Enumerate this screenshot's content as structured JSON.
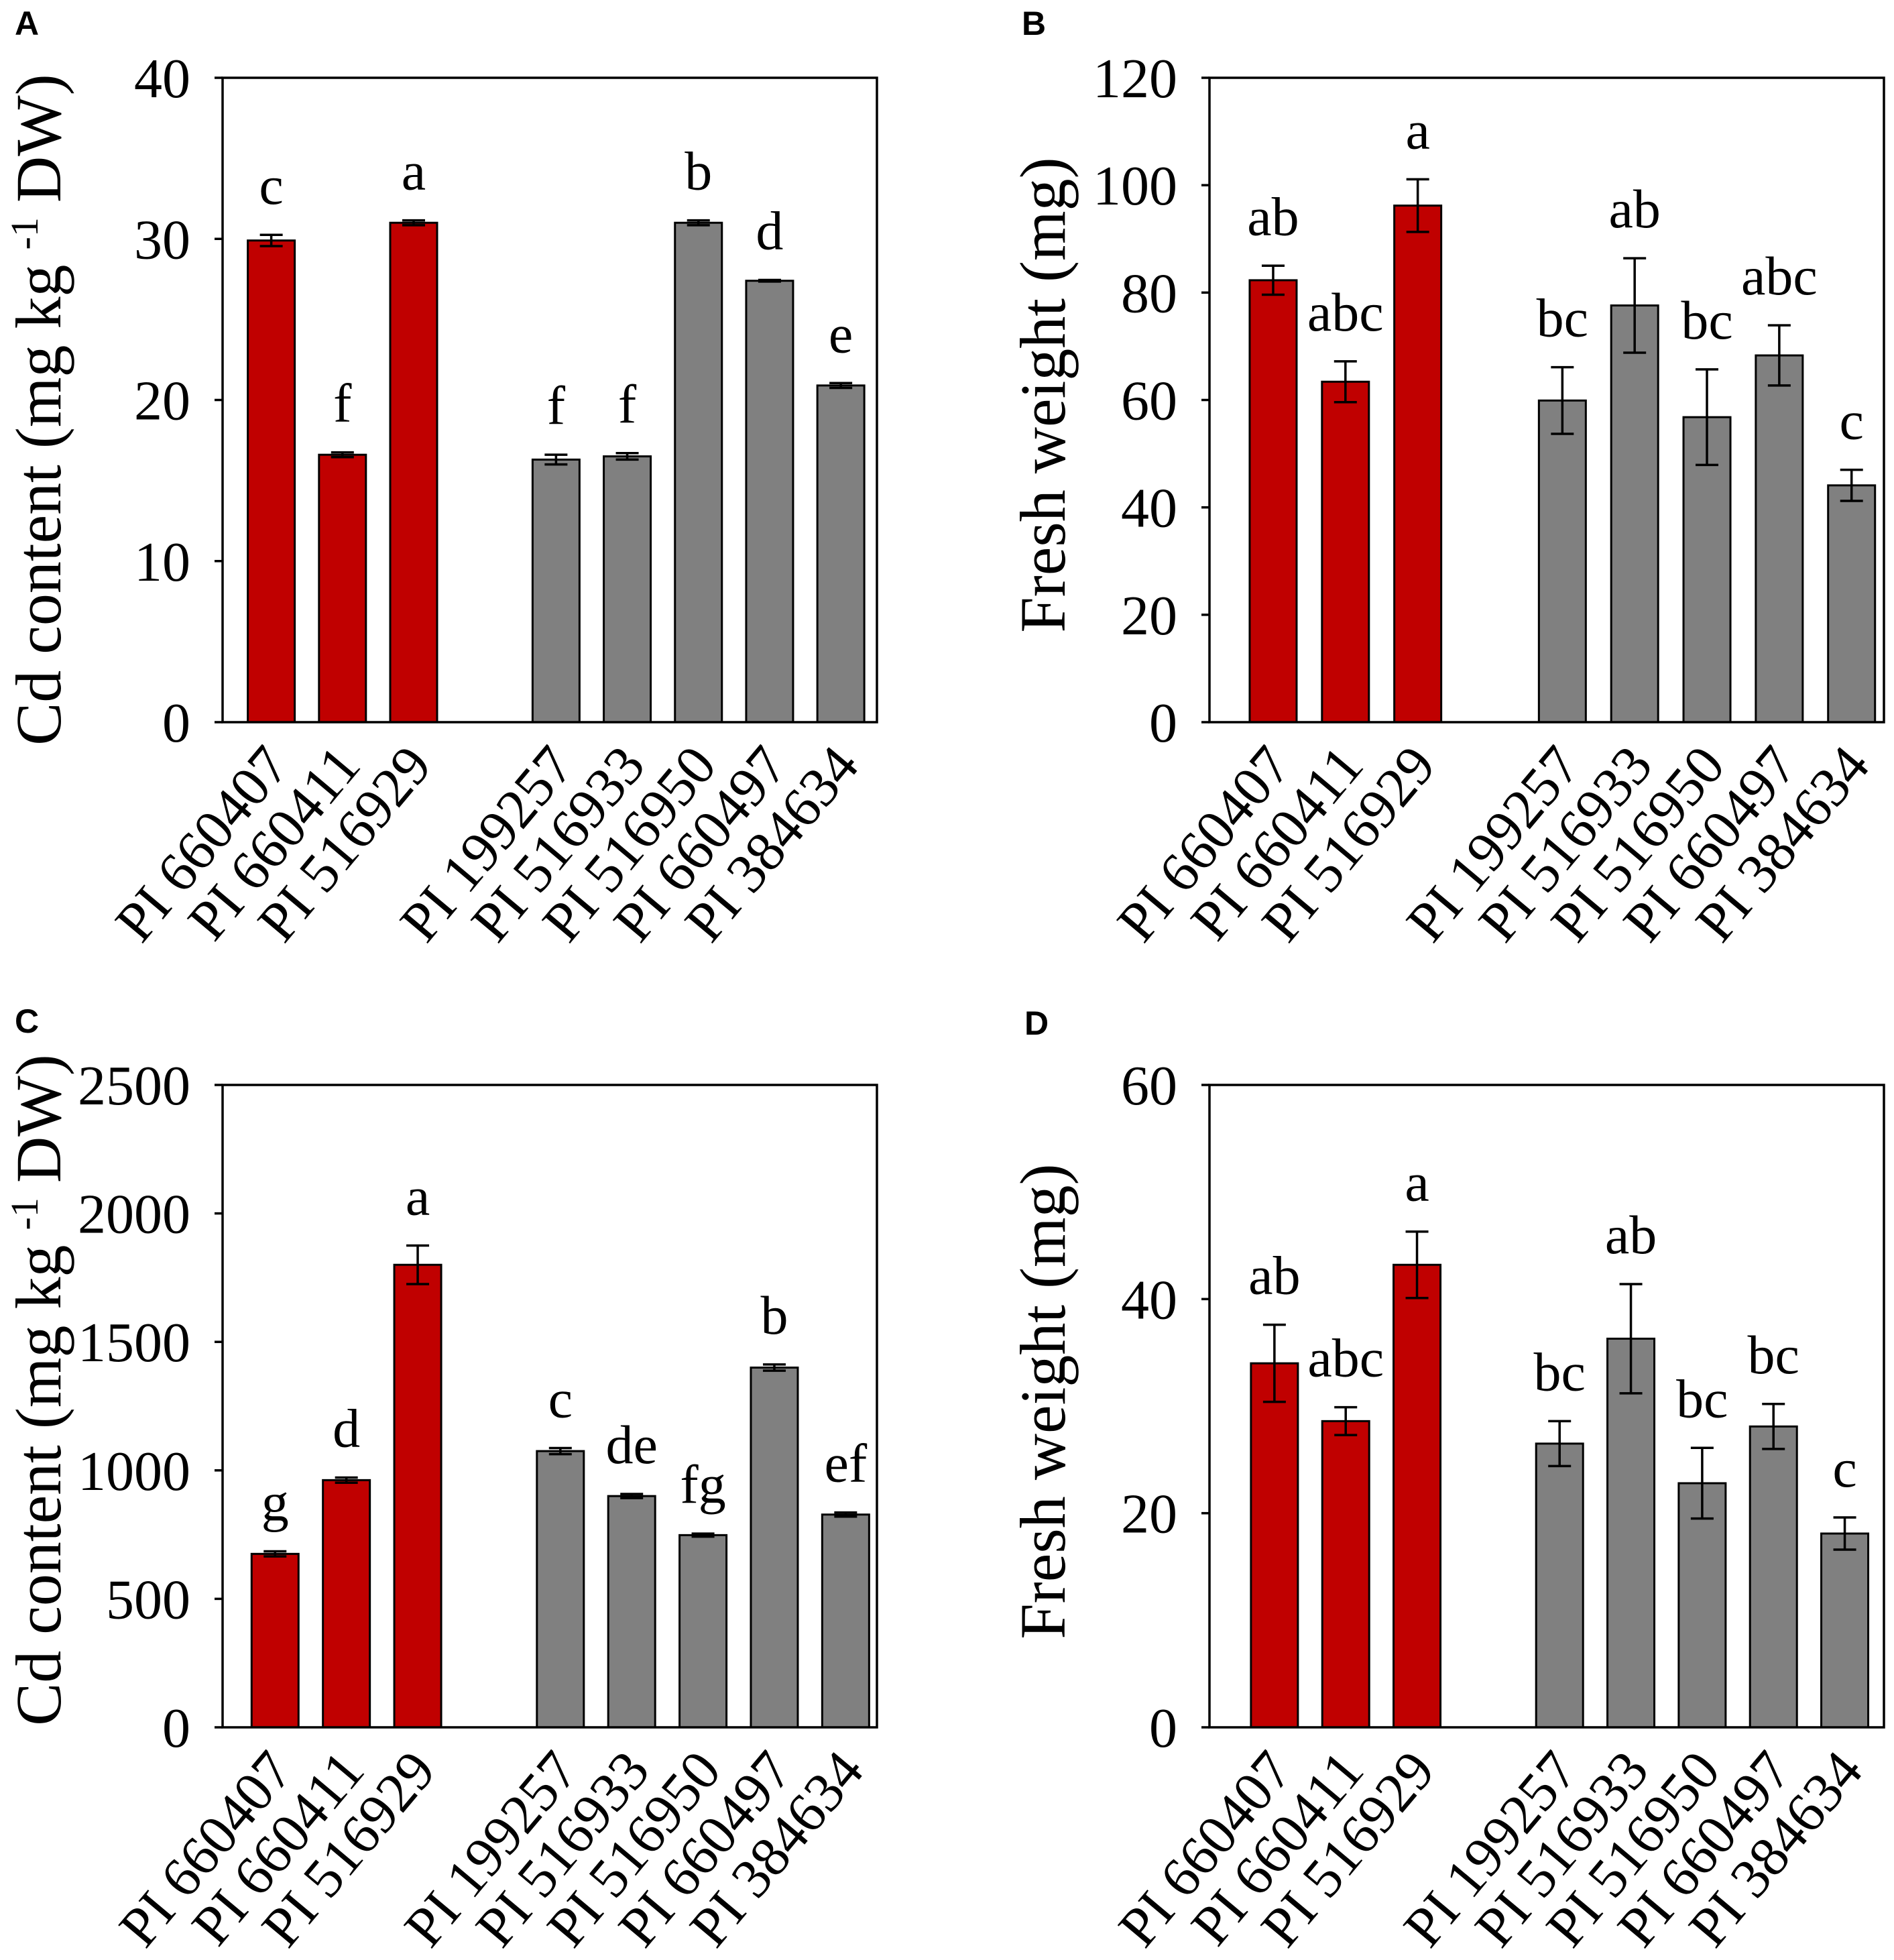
{
  "chart_data": [
    {
      "panel_label": "A",
      "type": "bar",
      "categories": [
        "PI 660407",
        "PI 660411",
        "PI 516929",
        "PI 199257",
        "PI 516933",
        "PI 516950",
        "PI 660497",
        "PI 384634"
      ],
      "values": [
        29.9,
        16.6,
        31.0,
        16.3,
        16.5,
        31.0,
        27.4,
        20.9
      ],
      "errors": [
        0.35,
        0.15,
        0.15,
        0.3,
        0.2,
        0.15,
        0.05,
        0.15
      ],
      "letters": [
        "c",
        "f",
        "a",
        "f",
        "f",
        "b",
        "d",
        "e"
      ],
      "bar_colors": [
        "#C00000",
        "#C00000",
        "#C00000",
        "#808080",
        "#808080",
        "#808080",
        "#808080",
        "#808080"
      ],
      "ylabel": {
        "text": "Cd content (mg kg",
        "superscript": "-1",
        "suffix": "DW)"
      },
      "ylim": [
        0,
        40
      ],
      "yticks": [
        0,
        10,
        20,
        30,
        40
      ],
      "grid": false
    },
    {
      "panel_label": "B",
      "type": "bar",
      "categories": [
        "PI 660407",
        "PI 660411",
        "PI 516929",
        "PI 199257",
        "PI 516933",
        "PI 516950",
        "PI 660497",
        "PI 384634"
      ],
      "values": [
        82.3,
        63.4,
        96.2,
        59.9,
        77.6,
        56.8,
        68.3,
        44.1
      ],
      "errors": [
        2.7,
        3.8,
        4.9,
        6.2,
        8.8,
        8.9,
        5.6,
        2.9
      ],
      "letters": [
        "ab",
        "abc",
        "a",
        "bc",
        "ab",
        "bc",
        "abc",
        "c"
      ],
      "bar_colors": [
        "#C00000",
        "#C00000",
        "#C00000",
        "#808080",
        "#808080",
        "#808080",
        "#808080",
        "#808080"
      ],
      "ylabel": {
        "text": "Fresh weight (mg)"
      },
      "ylim": [
        0,
        120
      ],
      "yticks": [
        0,
        20,
        40,
        60,
        80,
        100,
        120
      ],
      "grid": false
    },
    {
      "panel_label": "C",
      "type": "bar",
      "categories": [
        "PI 660407",
        "PI 660411",
        "PI 516929",
        "PI 199257",
        "PI 516933",
        "PI 516950",
        "PI 660497",
        "PI 384634"
      ],
      "values": [
        675,
        962,
        1800,
        1075,
        900,
        748,
        1400,
        828
      ],
      "errors": [
        10,
        10,
        75,
        12,
        8,
        6,
        12,
        8
      ],
      "letters": [
        "g",
        "d",
        "a",
        "c",
        "de",
        "fg",
        "b",
        "ef"
      ],
      "bar_colors": [
        "#C00000",
        "#C00000",
        "#C00000",
        "#808080",
        "#808080",
        "#808080",
        "#808080",
        "#808080"
      ],
      "ylabel": {
        "text": "Cd content (mg kg",
        "superscript": "-1",
        "suffix": "DW)"
      },
      "ylim": [
        0,
        2500
      ],
      "yticks": [
        0,
        500,
        1000,
        1500,
        2000,
        2500
      ],
      "grid": false
    },
    {
      "panel_label": "D",
      "type": "bar",
      "categories": [
        "PI 660407",
        "PI 660411",
        "PI 516929",
        "PI 199257",
        "PI 516933",
        "PI 516950",
        "PI 660497",
        "PI 384634"
      ],
      "values": [
        34.0,
        28.6,
        43.2,
        26.5,
        36.3,
        22.8,
        28.1,
        18.1
      ],
      "errors": [
        3.6,
        1.3,
        3.1,
        2.1,
        5.1,
        3.3,
        2.1,
        1.5
      ],
      "letters": [
        "ab",
        "abc",
        "a",
        "bc",
        "ab",
        "bc",
        "bc",
        "c"
      ],
      "bar_colors": [
        "#C00000",
        "#C00000",
        "#C00000",
        "#808080",
        "#808080",
        "#808080",
        "#808080",
        "#808080"
      ],
      "ylabel": {
        "text": "Fresh weight (mg)"
      },
      "ylim": [
        0,
        60
      ],
      "yticks": [
        0,
        20,
        40,
        60
      ],
      "grid": false
    }
  ]
}
